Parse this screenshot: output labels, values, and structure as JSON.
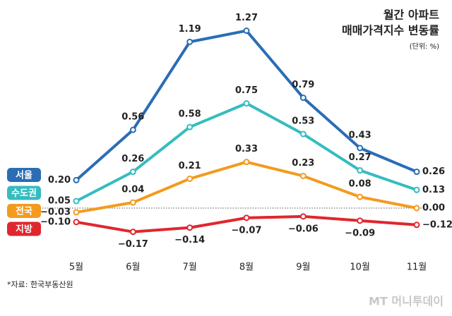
{
  "chart_data": {
    "type": "line",
    "title": [
      "월간 아파트",
      "매매가격지수 변동률"
    ],
    "unit": "(단위: %)",
    "source": "*자료: 한국부동산원",
    "watermark": "MT 머니투데이",
    "categories": [
      "5월",
      "6월",
      "7월",
      "8월",
      "9월",
      "10월",
      "11월"
    ],
    "ylim": [
      -0.25,
      1.4
    ],
    "series": [
      {
        "name": "서울",
        "color": "#2a6db5",
        "values": [
          0.2,
          0.56,
          1.19,
          1.27,
          0.79,
          0.43,
          0.26
        ],
        "value_labels": [
          "0.20",
          "0.56",
          "1.19",
          "1.27",
          "0.79",
          "0.43",
          "0.26"
        ]
      },
      {
        "name": "수도권",
        "color": "#35bcc0",
        "values": [
          0.05,
          0.26,
          0.58,
          0.75,
          0.53,
          0.27,
          0.13
        ],
        "value_labels": [
          "0.05",
          "0.26",
          "0.58",
          "0.75",
          "0.53",
          "0.27",
          "0.13"
        ]
      },
      {
        "name": "전국",
        "color": "#f29b1f",
        "values": [
          -0.03,
          0.04,
          0.21,
          0.33,
          0.23,
          0.08,
          0.0
        ],
        "value_labels": [
          "−0.03",
          "0.04",
          "0.21",
          "0.33",
          "0.23",
          "0.08",
          "0.00"
        ]
      },
      {
        "name": "지방",
        "color": "#e0262f",
        "values": [
          -0.1,
          -0.17,
          -0.14,
          -0.07,
          -0.06,
          -0.09,
          -0.12
        ],
        "value_labels": [
          "−0.10",
          "−0.17",
          "−0.14",
          "−0.07",
          "−0.06",
          "−0.09",
          "−0.12"
        ]
      }
    ]
  }
}
